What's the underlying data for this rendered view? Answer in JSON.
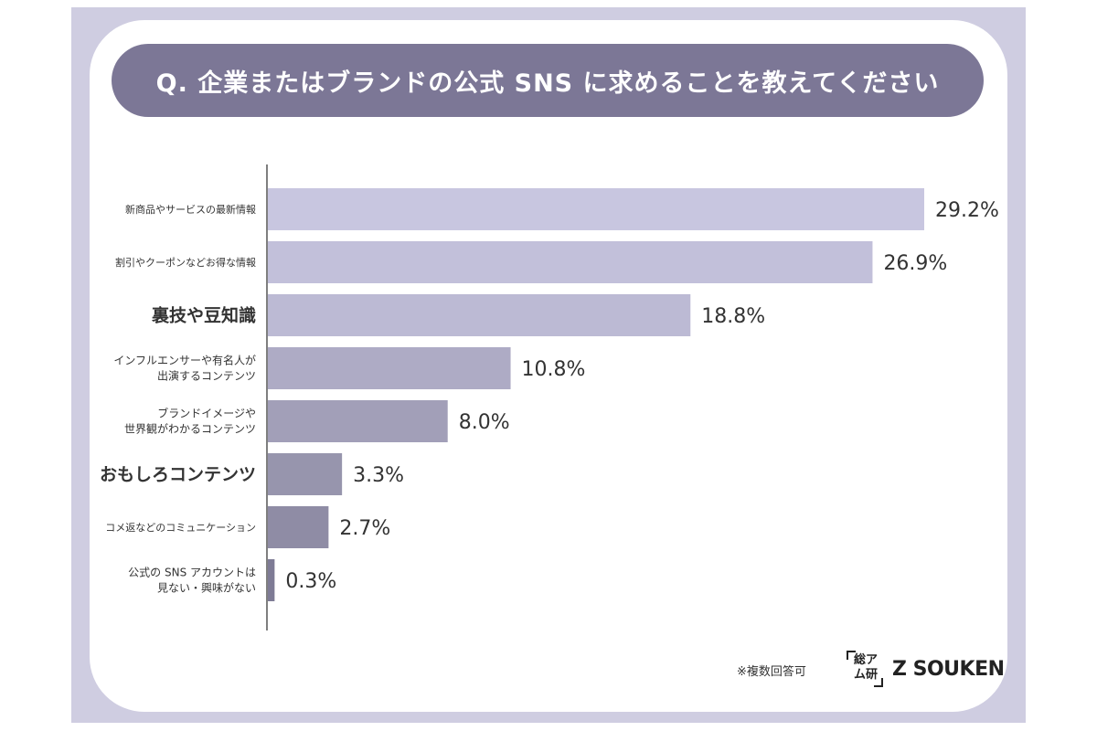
{
  "title": "Q. 企業またはブランドの公式 SNS に求めることを教えてください",
  "footer_note": "※複数回答可",
  "logo": {
    "mark_top": "総ア",
    "mark_bottom": "ム研",
    "wordmark": "Z SOUKEN"
  },
  "colors": {
    "frame": "#cfcde1",
    "title_pill": "#7c7796",
    "bars": [
      "#c8c6e0",
      "#c2c0da",
      "#bcbad4",
      "#aeabc5",
      "#a29fb8",
      "#9795ad",
      "#8f8ca5",
      "#7e7b95"
    ]
  },
  "chart_data": {
    "type": "bar",
    "orientation": "horizontal",
    "categories": [
      [
        "新商品やサービスの最新情報"
      ],
      [
        "割引やクーポンなどお得な情報"
      ],
      [
        "裏技や豆知識"
      ],
      [
        "インフルエンサーや有名人が",
        "出演するコンテンツ"
      ],
      [
        "ブランドイメージや",
        "世界観がわかるコンテンツ"
      ],
      [
        "おもしろコンテンツ"
      ],
      [
        "コメ返などのコミュニケーション"
      ],
      [
        "公式の SNS アカウントは",
        "見ない・興味がない"
      ]
    ],
    "values": [
      29.2,
      26.9,
      18.8,
      10.8,
      8.0,
      3.3,
      2.7,
      0.3
    ],
    "value_labels": [
      "29.2%",
      "26.9%",
      "18.8%",
      "10.8%",
      "8.0%",
      "3.3%",
      "2.7%",
      "0.3%"
    ],
    "xlim": [
      0,
      29.2
    ],
    "grid": false,
    "legend": "none"
  }
}
